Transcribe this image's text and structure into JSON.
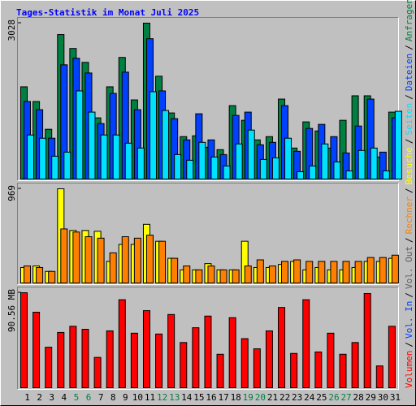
{
  "chart_data": {
    "type": "bar",
    "title": "Tages-Statistik im Monat Juli 2025",
    "title_color": "#0000FF",
    "categories": [
      "1",
      "2",
      "3",
      "4",
      "5",
      "6",
      "7",
      "8",
      "9",
      "10",
      "11",
      "12",
      "13",
      "14",
      "15",
      "16",
      "17",
      "18",
      "19",
      "20",
      "21",
      "22",
      "23",
      "24",
      "25",
      "26",
      "27",
      "28",
      "29",
      "30",
      "31"
    ],
    "category_colors": [
      "#000000",
      "#000000",
      "#000000",
      "#000000",
      "#008040",
      "#008040",
      "#000000",
      "#000000",
      "#000000",
      "#000000",
      "#000000",
      "#008040",
      "#008040",
      "#000000",
      "#000000",
      "#000000",
      "#000000",
      "#000000",
      "#008040",
      "#008040",
      "#000000",
      "#000000",
      "#000000",
      "#000000",
      "#000000",
      "#008040",
      "#008040",
      "#000000",
      "#000000",
      "#000000",
      "#000000"
    ],
    "legend_separator": "/",
    "panels": [
      {
        "ylim": [
          0,
          3028
        ],
        "yticks": [
          3028
        ],
        "series": [
          {
            "name": "Anfragen",
            "color": "#008040",
            "values": [
              1791,
              1506,
              967,
              2806,
              2536,
              2266,
              1189,
              1791,
              2362,
              1537,
              3028,
              1997,
              1284,
              824,
              840,
              618,
              571,
              1426,
              1141,
              761,
              824,
              1553,
              602,
              1110,
              935,
              602,
              1141,
              1617,
              1617,
              428,
              1300
            ]
          },
          {
            "name": "Dateien",
            "color": "#0040FF",
            "values": [
              1506,
              1347,
              793,
              2219,
              2346,
              2060,
              1078,
              1664,
              2076,
              1347,
              2726,
              1712,
              1173,
              761,
              1268,
              761,
              475,
              1236,
              1300,
              666,
              713,
              1426,
              539,
              983,
              1062,
              824,
              507,
              1030,
              1553,
              523,
              1189
            ]
          },
          {
            "name": "Seiten",
            "color": "#00E0FF",
            "values": [
              856,
              793,
              444,
              523,
              1712,
              1300,
              856,
              856,
              697,
              602,
              1696,
              1331,
              475,
              365,
              713,
              428,
              254,
              682,
              951,
              380,
              412,
              793,
              143,
              254,
              682,
              333,
              159,
              555,
              602,
              159,
              1316
            ]
          }
        ]
      },
      {
        "ylim": [
          0,
          969
        ],
        "yticks": [
          969
        ],
        "series": [
          {
            "name": "Besuche",
            "color": "#FFFF00",
            "values": [
              159,
              175,
              119,
              969,
              540,
              540,
              532,
              222,
              397,
              397,
              603,
              429,
              254,
              135,
              135,
              199,
              135,
              135,
              429,
              159,
              159,
              191,
              222,
              135,
              159,
              135,
              135,
              159,
              222,
              222,
              254
            ]
          },
          {
            "name": "Rechner",
            "color": "#FF8000",
            "values": [
              175,
              159,
              119,
              556,
              524,
              476,
              461,
              310,
              476,
              461,
              492,
              429,
              254,
              175,
              135,
              175,
              135,
              135,
              175,
              238,
              175,
              222,
              238,
              222,
              222,
              222,
              222,
              222,
              262,
              262,
              286
            ]
          }
        ]
      },
      {
        "ylim": [
          0,
          90.56
        ],
        "yticks": [
          {
            "value": 90.56,
            "label": "90.56 MB"
          }
        ],
        "extra_legend": [
          {
            "name": "Vol. Out",
            "color": "#606060"
          },
          {
            "name": "Vol. In",
            "color": "#0040FF"
          }
        ],
        "series": [
          {
            "name": "Volumen",
            "color": "#FF0000",
            "values": [
              90.56,
              72.0,
              38.6,
              52.7,
              58.6,
              55.7,
              28.9,
              54.2,
              83.9,
              52.0,
              73.5,
              51.2,
              69.8,
              43.1,
              57.2,
              68.3,
              31.9,
              66.8,
              46.8,
              37.1,
              54.2,
              76.5,
              32.7,
              83.9,
              34.1,
              52.0,
              31.9,
              43.1,
              89.8,
              20.8,
              58.6
            ]
          }
        ]
      }
    ]
  }
}
